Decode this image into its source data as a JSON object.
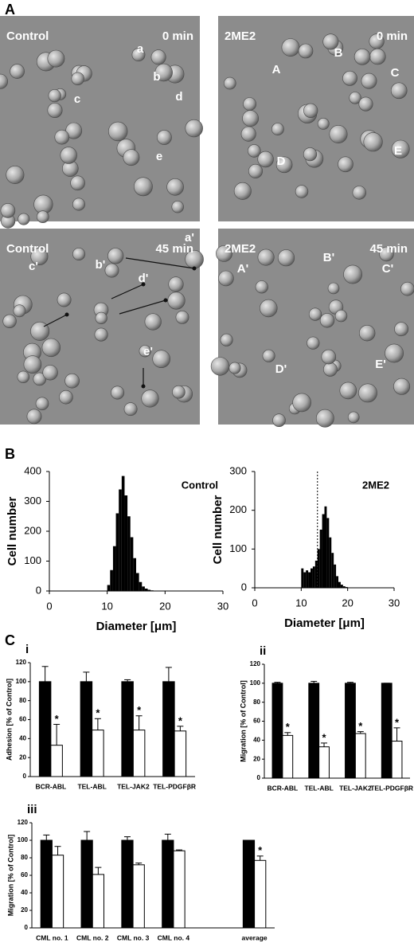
{
  "figure_labels": [
    "A",
    "B",
    "C"
  ],
  "micrographs": [
    {
      "condition": "Control",
      "time": "0 min",
      "cell_labels": [
        "a",
        "b",
        "c",
        "d",
        "e"
      ]
    },
    {
      "condition": "2ME2",
      "time": "0 min",
      "cell_labels": [
        "A",
        "B",
        "C",
        "D",
        "E"
      ]
    },
    {
      "condition": "Control",
      "time": "45 min",
      "cell_labels": [
        "a'",
        "b'",
        "c'",
        "d'",
        "e'"
      ]
    },
    {
      "condition": "2ME2",
      "time": "45 min",
      "cell_labels": [
        "A'",
        "B'",
        "C'",
        "D'",
        "E'"
      ]
    }
  ],
  "chart_data": [
    {
      "type": "histogram",
      "label": "Control",
      "xlabel": "Diameter [μm]",
      "ylabel": "Cell number",
      "bins": [
        10,
        10.5,
        11,
        11.5,
        12,
        12.5,
        13,
        13.5,
        14,
        14.5,
        15,
        15.5,
        16,
        16.5,
        17,
        17.5,
        18
      ],
      "counts": [
        20,
        70,
        150,
        260,
        340,
        385,
        320,
        250,
        180,
        110,
        60,
        30,
        15,
        8,
        4,
        2
      ],
      "color": "#000000",
      "xlim": [
        0,
        30
      ],
      "xticks": [
        0,
        10,
        20,
        30
      ],
      "ylim": [
        0,
        400
      ],
      "yticks": [
        0,
        100,
        200,
        300,
        400
      ]
    },
    {
      "type": "histogram",
      "label": "2ME2",
      "xlabel": "Diameter [μm]",
      "ylabel": "Cell number",
      "bins": [
        10,
        10.5,
        11,
        11.5,
        12,
        12.5,
        13,
        13.5,
        14,
        14.5,
        15,
        15.5,
        16,
        16.5,
        17,
        17.5,
        18,
        18.5,
        19,
        19.5,
        20
      ],
      "counts": [
        50,
        40,
        45,
        40,
        50,
        55,
        70,
        100,
        150,
        190,
        210,
        180,
        130,
        90,
        60,
        30,
        15,
        8,
        4,
        2
      ],
      "color": "#000000",
      "reference_line": 13.5,
      "xlim": [
        0,
        30
      ],
      "xticks": [
        0,
        10,
        20,
        30
      ],
      "ylim": [
        0,
        300
      ],
      "yticks": [
        0,
        100,
        200,
        300
      ]
    },
    {
      "type": "bar",
      "panel": "i",
      "ylabel": "Adhesion [% of Control]",
      "categories": [
        "BCR-ABL",
        "TEL-ABL",
        "TEL-JAK2",
        "TEL-PDGFβR"
      ],
      "series": [
        {
          "color": "#000000",
          "values": [
            100,
            100,
            100,
            100
          ],
          "errors": [
            16,
            10,
            2,
            15
          ]
        },
        {
          "color": "#ffffff",
          "values": [
            33,
            49,
            49,
            48
          ],
          "errors": [
            22,
            12,
            15,
            5
          ],
          "markers": [
            "*",
            "*",
            "*",
            "*"
          ]
        }
      ],
      "ylim": [
        0,
        120
      ],
      "yticks": [
        0,
        20,
        40,
        60,
        80,
        100,
        120
      ]
    },
    {
      "type": "bar",
      "panel": "ii",
      "ylabel": "Migration [% of Control]",
      "categories": [
        "BCR-ABL",
        "TEL-ABL",
        "TEL-JAK2",
        "TEL-PDGFβR"
      ],
      "series": [
        {
          "color": "#000000",
          "values": [
            100,
            100,
            100,
            100
          ],
          "errors": [
            1,
            2,
            1,
            0
          ]
        },
        {
          "color": "#ffffff",
          "values": [
            45,
            33,
            47,
            39
          ],
          "errors": [
            3,
            4,
            2,
            14
          ],
          "markers": [
            "*",
            "*",
            "*",
            "*"
          ]
        }
      ],
      "ylim": [
        0,
        120
      ],
      "yticks": [
        0,
        20,
        40,
        60,
        80,
        100,
        120
      ]
    },
    {
      "type": "bar",
      "panel": "iii",
      "ylabel": "Migration [% of Control]",
      "categories": [
        "CML no. 1",
        "CML no. 2",
        "CML no. 3",
        "CML no. 4",
        null,
        "average"
      ],
      "series": [
        {
          "color": "#000000",
          "values": [
            100,
            100,
            100,
            100,
            null,
            100
          ],
          "errors": [
            6,
            10,
            4,
            7,
            null,
            0
          ]
        },
        {
          "color": "#ffffff",
          "values": [
            83,
            61,
            72,
            88,
            null,
            77
          ],
          "errors": [
            10,
            8,
            2,
            1,
            null,
            5
          ],
          "markers": [
            null,
            null,
            null,
            null,
            null,
            "*"
          ]
        }
      ],
      "ylim": [
        0,
        120
      ],
      "yticks": [
        0,
        20,
        40,
        60,
        80,
        100,
        120
      ]
    }
  ]
}
